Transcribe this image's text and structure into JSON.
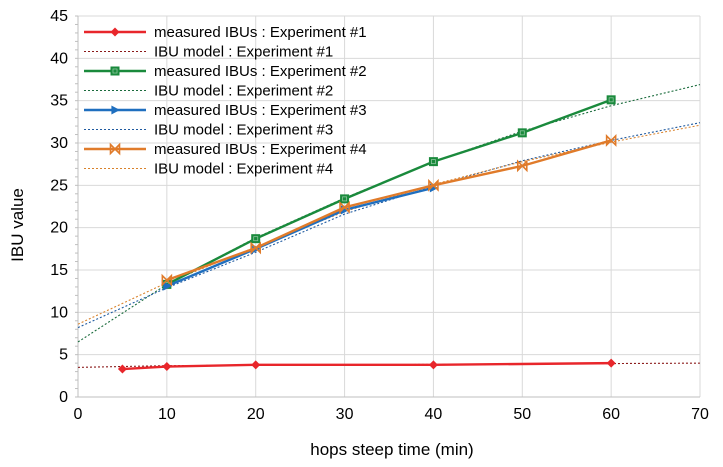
{
  "chart_data": {
    "type": "line",
    "title": "",
    "xlabel": "hops steep time (min)",
    "ylabel": "IBU value",
    "xlim": [
      0,
      70
    ],
    "ylim": [
      0,
      45
    ],
    "xticks": [
      0,
      10,
      20,
      30,
      40,
      50,
      60,
      70
    ],
    "yticks": [
      0,
      5,
      10,
      15,
      20,
      25,
      30,
      35,
      40,
      45
    ],
    "grid": true,
    "legend_position": "top-left",
    "series": [
      {
        "name": "measured IBUs : Experiment #1",
        "kind": "measured",
        "color": "#e8262b",
        "marker": "diamond",
        "x": [
          5,
          10,
          20,
          40,
          60
        ],
        "y": [
          3.3,
          3.6,
          3.8,
          3.8,
          4.0
        ]
      },
      {
        "name": "IBU model : Experiment #1",
        "kind": "model",
        "color": "#8b1a1a",
        "x": [
          0,
          10,
          20,
          30,
          40,
          50,
          60,
          70
        ],
        "y": [
          3.5,
          3.7,
          3.75,
          3.8,
          3.85,
          3.9,
          3.95,
          4.0
        ]
      },
      {
        "name": "measured IBUs : Experiment #2",
        "kind": "measured",
        "color": "#1a8a3c",
        "marker": "square",
        "x": [
          10,
          20,
          30,
          40,
          50,
          60
        ],
        "y": [
          13.3,
          18.7,
          23.4,
          27.8,
          31.2,
          35.1
        ]
      },
      {
        "name": "IBU model : Experiment #2",
        "kind": "model",
        "color": "#1a6b3c",
        "x": [
          0,
          10,
          20,
          30,
          40,
          50,
          60,
          70
        ],
        "y": [
          6.5,
          13.3,
          18.8,
          23.5,
          27.8,
          31.4,
          34.4,
          36.9
        ]
      },
      {
        "name": "measured IBUs : Experiment #3",
        "kind": "measured",
        "color": "#1f6fbf",
        "marker": "triangle",
        "x": [
          10,
          20,
          30,
          40
        ],
        "y": [
          13.1,
          17.5,
          22.1,
          24.7
        ]
      },
      {
        "name": "IBU model : Experiment #3",
        "kind": "model",
        "color": "#1f5aa0",
        "x": [
          0,
          10,
          20,
          30,
          40,
          50,
          60,
          70
        ],
        "y": [
          8.2,
          12.9,
          17.1,
          21.6,
          24.9,
          27.9,
          30.3,
          32.4
        ]
      },
      {
        "name": "measured IBUs : Experiment #4",
        "kind": "measured",
        "color": "#e07b2a",
        "marker": "bowtie",
        "x": [
          10,
          20,
          30,
          40,
          50,
          60
        ],
        "y": [
          13.8,
          17.6,
          22.4,
          25.0,
          27.3,
          30.3
        ]
      },
      {
        "name": "IBU model : Experiment #4",
        "kind": "model",
        "color": "#d9822b",
        "x": [
          0,
          10,
          20,
          30,
          40,
          50,
          60,
          70
        ],
        "y": [
          8.6,
          13.5,
          17.7,
          21.9,
          25.1,
          27.8,
          30.1,
          32.1
        ]
      }
    ]
  }
}
